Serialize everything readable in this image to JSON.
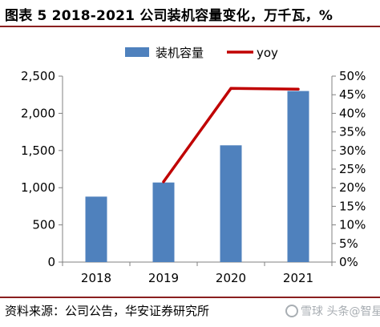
{
  "header": {
    "title": "图表 5 2018-2021 公司装机容量变化，万千瓦，%"
  },
  "footer": {
    "source": "资料来源：公司公告，华安证券研究所",
    "watermark": "雪球 头条@智星"
  },
  "colors": {
    "bar": "#4f81bd",
    "line": "#c00000",
    "rule": "#8a1f1f"
  },
  "chart_data": {
    "type": "bar",
    "categories": [
      "2018",
      "2019",
      "2020",
      "2021"
    ],
    "series": [
      {
        "name": "装机容量",
        "type": "bar",
        "axis": "left",
        "values": [
          880,
          1070,
          1570,
          2300
        ]
      },
      {
        "name": "yoy",
        "type": "line",
        "axis": "right",
        "values": [
          null,
          21.6,
          46.7,
          46.5
        ]
      }
    ],
    "y_left": {
      "lim": [
        0,
        2500
      ],
      "ticks": [
        "0",
        "500",
        "1,000",
        "1,500",
        "2,000",
        "2,500"
      ]
    },
    "y_right": {
      "lim": [
        0,
        50
      ],
      "ticks": [
        "0%",
        "5%",
        "10%",
        "15%",
        "20%",
        "25%",
        "30%",
        "35%",
        "40%",
        "45%",
        "50%"
      ]
    },
    "legend_position": "top",
    "grid": false
  }
}
